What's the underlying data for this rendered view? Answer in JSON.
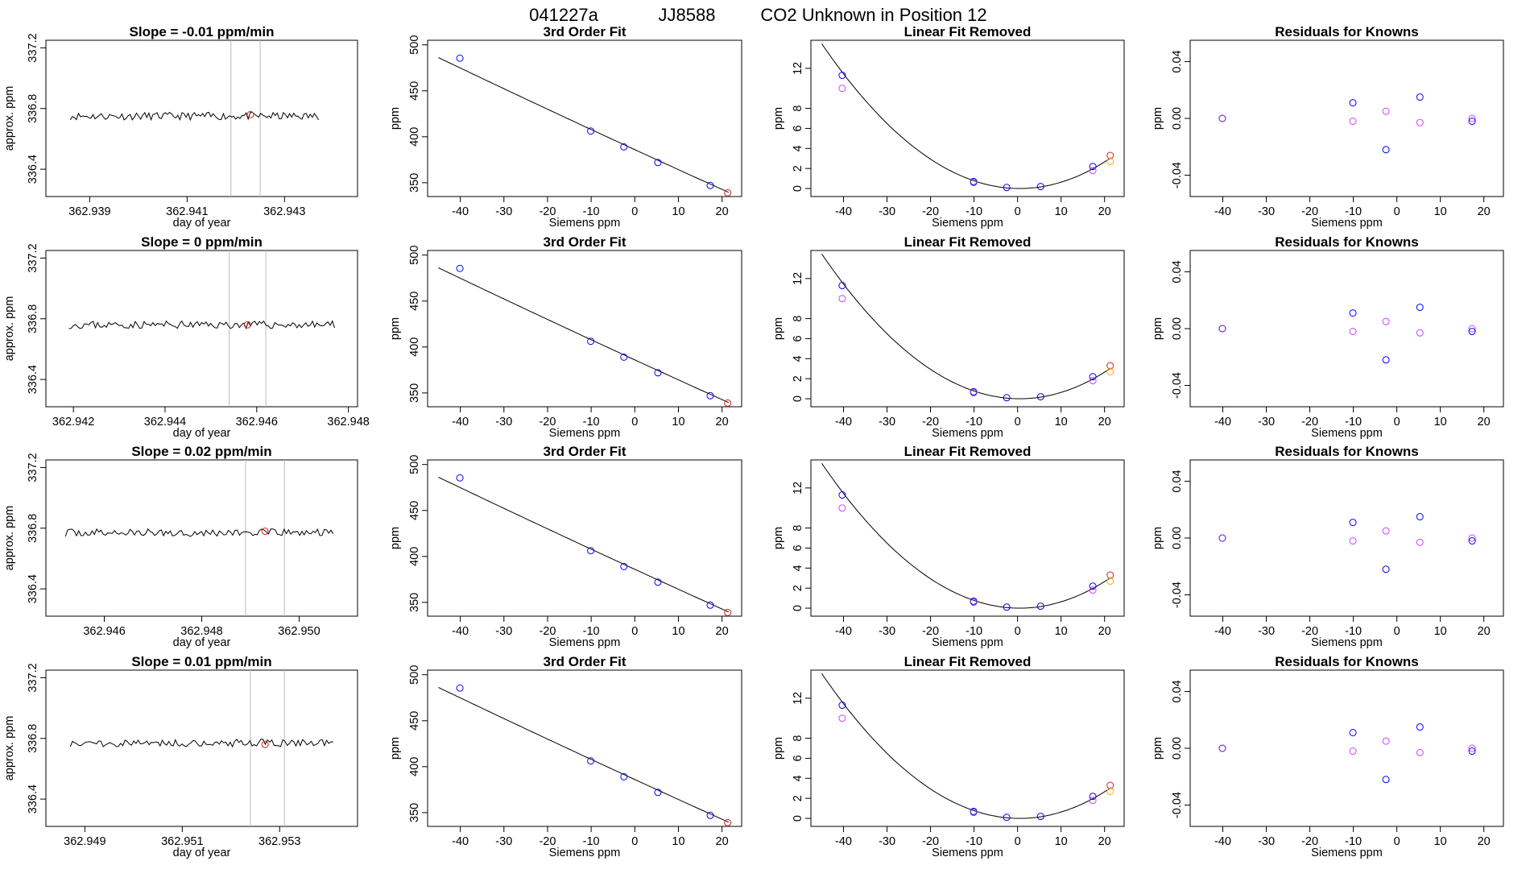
{
  "figure": {
    "title_parts": [
      "041227a",
      "JJ8588",
      "CO2 Unknown in Position  12"
    ]
  },
  "colors": {
    "line": "#000000",
    "marker_blue": "#0000ff",
    "marker_purple": "#7733cc",
    "marker_magenta": "#cc44ff",
    "marker_red": "#d62020",
    "marker_orange": "#ffa500",
    "vline": "#bbbbbb"
  },
  "chart_data": [
    {
      "type": "line",
      "row": 0,
      "col": 0,
      "title": "Slope =  -0.01  ppm/min",
      "xlabel": "day of year",
      "ylabel": "approx. ppm",
      "xlim": [
        362.9381,
        362.9445
      ],
      "ylim": [
        336.22,
        337.25
      ],
      "xticks": [
        362.939,
        362.941,
        362.943
      ],
      "xtick_labels": [
        "362.939",
        "362.941",
        "362.943"
      ],
      "yticks": [
        336.4,
        336.8,
        337.2
      ],
      "ytick_labels": [
        "336.4",
        "336.8",
        "337.2"
      ],
      "series_x": [
        362.9386,
        362.9437
      ],
      "series_mean": 336.75,
      "series_amp": 0.025,
      "seed": 11,
      "vlines": [
        362.9419,
        362.9425
      ],
      "marker": {
        "x": 362.9423,
        "y": 336.76
      }
    },
    {
      "type": "line",
      "row": 1,
      "col": 0,
      "title": "Slope =  0  ppm/min",
      "xlabel": "day of year",
      "ylabel": "approx. ppm",
      "xlim": [
        362.9414,
        362.9482
      ],
      "ylim": [
        336.22,
        337.25
      ],
      "xticks": [
        362.942,
        362.944,
        362.946,
        362.948
      ],
      "xtick_labels": [
        "362.942",
        "362.944",
        "362.946",
        "362.948"
      ],
      "yticks": [
        336.4,
        336.8,
        337.2
      ],
      "ytick_labels": [
        "336.4",
        "336.8",
        "337.2"
      ],
      "series_x": [
        362.9419,
        362.9477
      ],
      "series_mean": 336.76,
      "series_amp": 0.025,
      "seed": 23,
      "vlines": [
        362.9454,
        362.9462
      ],
      "marker": {
        "x": 362.9458,
        "y": 336.76
      }
    },
    {
      "type": "line",
      "row": 2,
      "col": 0,
      "title": "Slope =  0.02  ppm/min",
      "xlabel": "day of year",
      "ylabel": "approx. ppm",
      "xlim": [
        362.9448,
        362.9512
      ],
      "ylim": [
        336.22,
        337.25
      ],
      "xticks": [
        362.946,
        362.948,
        362.95
      ],
      "xtick_labels": [
        "362.946",
        "362.948",
        "362.950"
      ],
      "yticks": [
        336.4,
        336.8,
        337.2
      ],
      "ytick_labels": [
        "336.4",
        "336.8",
        "337.2"
      ],
      "series_x": [
        362.9452,
        362.9507
      ],
      "series_mean": 336.77,
      "series_amp": 0.025,
      "seed": 37,
      "vlines": [
        362.9489,
        362.9497
      ],
      "marker": {
        "x": 362.9493,
        "y": 336.78
      }
    },
    {
      "type": "line",
      "row": 3,
      "col": 0,
      "title": "Slope =  0.01  ppm/min",
      "xlabel": "day of year",
      "ylabel": "approx. ppm",
      "xlim": [
        362.9482,
        362.9546
      ],
      "ylim": [
        336.22,
        337.25
      ],
      "xticks": [
        362.949,
        362.951,
        362.953
      ],
      "xtick_labels": [
        "362.949",
        "362.951",
        "362.953"
      ],
      "yticks": [
        336.4,
        336.8,
        337.2
      ],
      "ytick_labels": [
        "336.4",
        "336.8",
        "337.2"
      ],
      "series_x": [
        362.9487,
        362.9541
      ],
      "series_mean": 336.77,
      "series_amp": 0.025,
      "seed": 51,
      "vlines": [
        362.9524,
        362.9531
      ],
      "marker": {
        "x": 362.9527,
        "y": 336.76
      }
    },
    {
      "type": "scatter",
      "col": 1,
      "rows": [
        0,
        1,
        2,
        3
      ],
      "title": "3rd Order Fit",
      "xlabel": "Siemens ppm",
      "ylabel": "ppm",
      "xlim": [
        -47.5,
        24.5
      ],
      "ylim": [
        335,
        505
      ],
      "xticks": [
        -40,
        -30,
        -20,
        -10,
        0,
        10,
        20
      ],
      "xtick_labels": [
        "-40",
        "-30",
        "-20",
        "-10",
        "0",
        "10",
        "20"
      ],
      "yticks": [
        350,
        400,
        450,
        500
      ],
      "ytick_labels": [
        "350",
        "400",
        "450",
        "500"
      ],
      "curve": {
        "kind": "cubic",
        "coef": [
          386,
          -2.18,
          0.001,
          0
        ],
        "x_range": [
          -45,
          21.5
        ]
      },
      "points": [
        {
          "x": -40.1,
          "y": 485.5,
          "color": "blue"
        },
        {
          "x": -10.1,
          "y": 406.2,
          "color": "blue"
        },
        {
          "x": -2.5,
          "y": 389.0,
          "color": "blue"
        },
        {
          "x": 5.3,
          "y": 372.0,
          "color": "blue"
        },
        {
          "x": 17.3,
          "y": 347.0,
          "color": "blue"
        },
        {
          "x": 21.3,
          "y": 339.0,
          "color": "red"
        }
      ]
    },
    {
      "type": "scatter",
      "col": 2,
      "rows": [
        0,
        1,
        2,
        3
      ],
      "title": "Linear Fit Removed",
      "xlabel": "Siemens ppm",
      "ylabel": "ppm",
      "xlim": [
        -47.5,
        24.5
      ],
      "ylim": [
        -0.8,
        14.8
      ],
      "xticks": [
        -40,
        -30,
        -20,
        -10,
        0,
        10,
        20
      ],
      "xtick_labels": [
        "-40",
        "-30",
        "-20",
        "-10",
        "0",
        "10",
        "20"
      ],
      "yticks": [
        0,
        2,
        4,
        6,
        8,
        12
      ],
      "ytick_labels": [
        "0",
        "2",
        "4",
        "6",
        "8",
        "12"
      ],
      "curve": {
        "kind": "parabola",
        "center": 0.5,
        "scale": 0.00698,
        "x_range": [
          -45,
          21.5
        ]
      },
      "points": [
        {
          "x": -40.3,
          "y": 11.3,
          "color": "blue"
        },
        {
          "x": -40.3,
          "y": 10.0,
          "color": "magenta"
        },
        {
          "x": -10.1,
          "y": 0.7,
          "color": "blue"
        },
        {
          "x": -10.1,
          "y": 0.6,
          "color": "purple"
        },
        {
          "x": -2.5,
          "y": 0.1,
          "color": "blue"
        },
        {
          "x": 5.3,
          "y": 0.2,
          "color": "blue"
        },
        {
          "x": 17.3,
          "y": 2.2,
          "color": "blue"
        },
        {
          "x": 17.3,
          "y": 1.8,
          "color": "magenta"
        },
        {
          "x": 21.3,
          "y": 3.3,
          "color": "red"
        },
        {
          "x": 21.3,
          "y": 2.7,
          "color": "orange"
        }
      ]
    },
    {
      "type": "scatter",
      "col": 3,
      "rows": [
        0,
        1,
        2,
        3
      ],
      "title": "Residuals for Knowns",
      "xlabel": "Siemens ppm",
      "ylabel": "ppm",
      "xlim": [
        -47.5,
        24.5
      ],
      "ylim": [
        -0.055,
        0.055
      ],
      "xticks": [
        -40,
        -30,
        -20,
        -10,
        0,
        10,
        20
      ],
      "xtick_labels": [
        "-40",
        "-30",
        "-20",
        "-10",
        "0",
        "10",
        "20"
      ],
      "yticks": [
        -0.04,
        0.0,
        0.04
      ],
      "ytick_labels": [
        "-0.04",
        "0.00",
        "0.04"
      ],
      "points": [
        {
          "x": -40.1,
          "y": 0.0,
          "color": "blue"
        },
        {
          "x": -40.1,
          "y": 0.0,
          "color": "purple"
        },
        {
          "x": -10.1,
          "y": 0.011,
          "color": "blue"
        },
        {
          "x": -10.1,
          "y": -0.002,
          "color": "magenta"
        },
        {
          "x": -2.5,
          "y": 0.005,
          "color": "magenta"
        },
        {
          "x": -2.5,
          "y": -0.022,
          "color": "blue"
        },
        {
          "x": 5.3,
          "y": 0.015,
          "color": "blue"
        },
        {
          "x": 5.3,
          "y": -0.003,
          "color": "magenta"
        },
        {
          "x": 17.3,
          "y": 0.0,
          "color": "magenta"
        },
        {
          "x": 17.3,
          "y": -0.002,
          "color": "blue"
        }
      ]
    }
  ]
}
